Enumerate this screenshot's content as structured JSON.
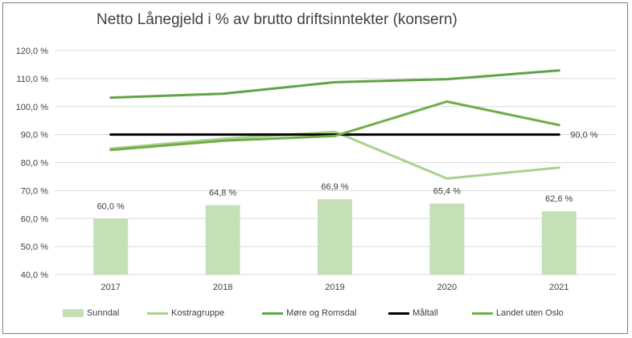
{
  "chart_data": {
    "type": "bar+line",
    "title": "Netto Lånegjeld i % av brutto driftsinntekter (konsern)",
    "categories": [
      "2017",
      "2018",
      "2019",
      "2020",
      "2021"
    ],
    "ylim": [
      40,
      120
    ],
    "yticks": [
      "40,0 %",
      "50,0 %",
      "60,0 %",
      "70,0 %",
      "80,0 %",
      "90,0 %",
      "100,0 %",
      "110,0 %",
      "120,0 %"
    ],
    "grid": true,
    "legend_position": "bottom",
    "series": [
      {
        "name": "Sunndal",
        "kind": "bar",
        "color": "#c5e0b4",
        "values": [
          60.0,
          64.8,
          66.9,
          65.4,
          62.6
        ],
        "labels": [
          "60,0 %",
          "64,8 %",
          "66,9 %",
          "65,4 %",
          "62,6 %"
        ]
      },
      {
        "name": "Kostragruppe",
        "kind": "line",
        "color": "#a9d18e",
        "values": [
          85.0,
          88.5,
          91.0,
          74.3,
          78.2
        ]
      },
      {
        "name": "Møre og Romsdal",
        "kind": "line",
        "color": "#5fa447",
        "values": [
          103.2,
          104.6,
          108.7,
          109.8,
          112.9
        ]
      },
      {
        "name": "Måltall",
        "kind": "line",
        "color": "#000000",
        "values": [
          90.0,
          90.0,
          90.0,
          90.0,
          90.0
        ],
        "end_label": "90,0 %"
      },
      {
        "name": "Landet uten Oslo",
        "kind": "line",
        "color": "#70ad47",
        "values": [
          84.5,
          87.8,
          89.5,
          101.8,
          93.4
        ]
      }
    ]
  }
}
